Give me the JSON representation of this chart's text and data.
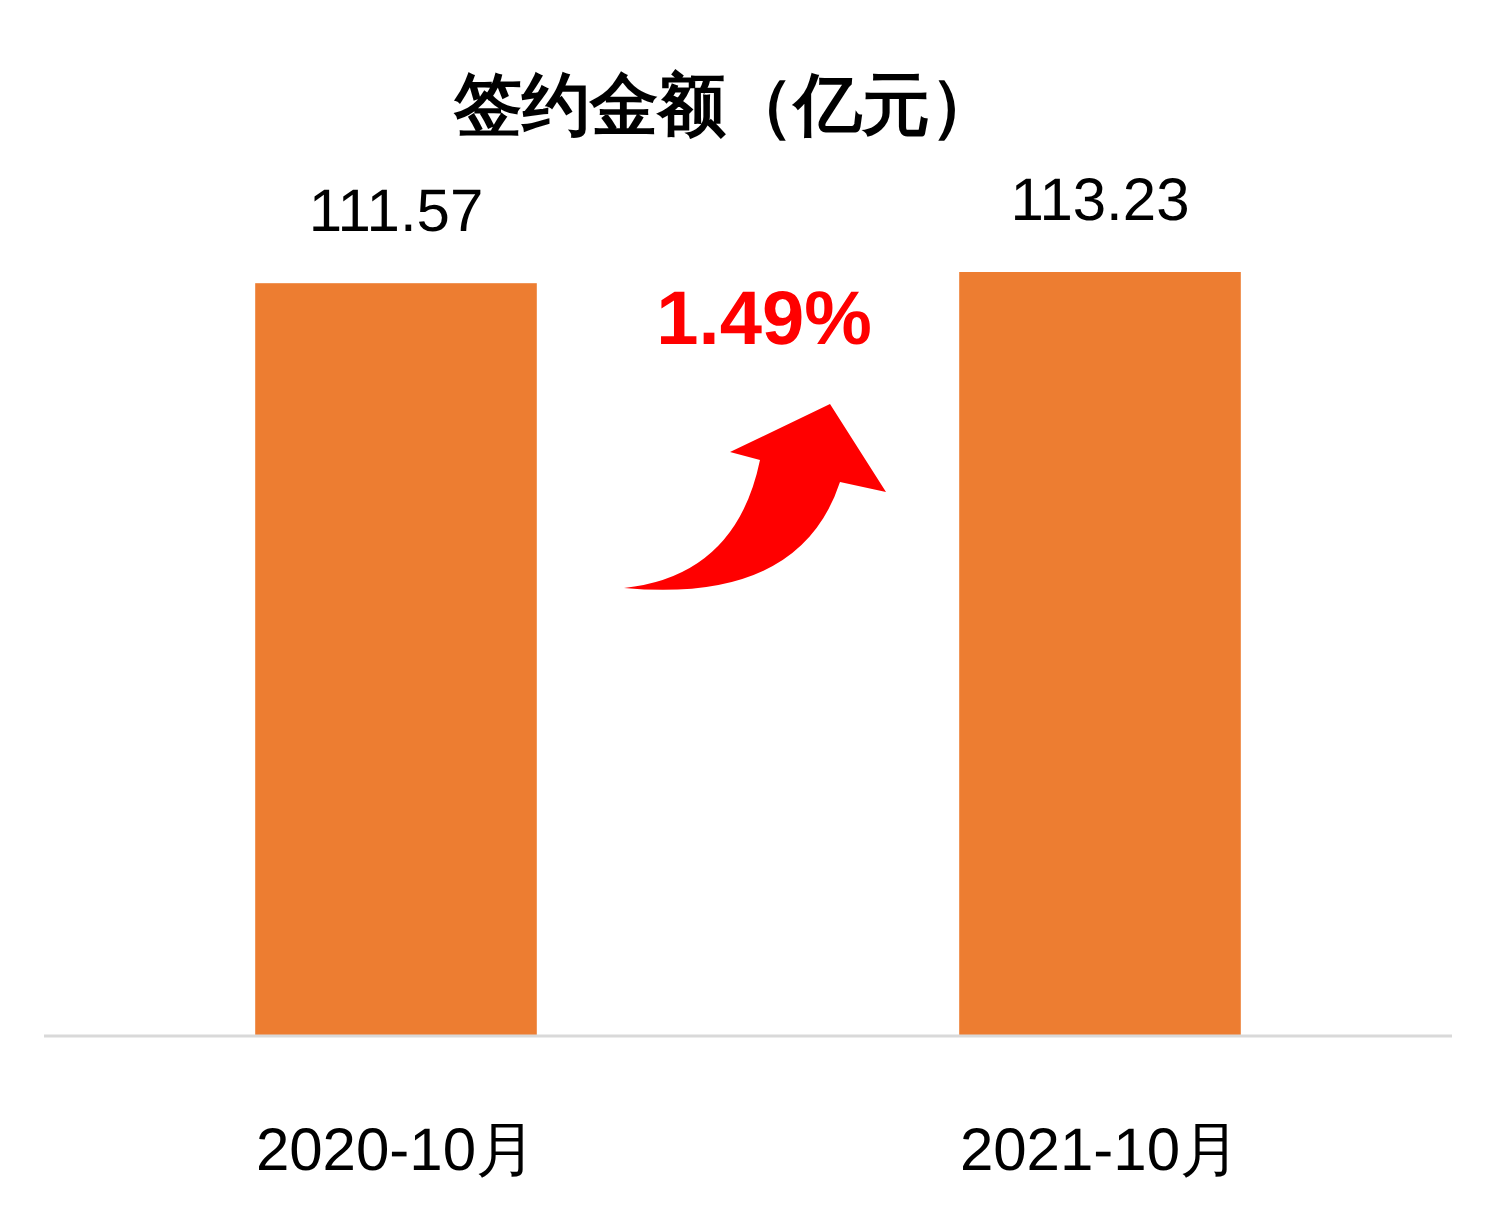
{
  "chart_data": {
    "type": "bar",
    "title": "签约金额（亿元）",
    "categories": [
      "2020-10月",
      "2021-10月"
    ],
    "values": [
      111.57,
      113.23
    ],
    "color": "#ed7d31",
    "data_labels": true,
    "annotations": [
      "1.49%"
    ]
  }
}
